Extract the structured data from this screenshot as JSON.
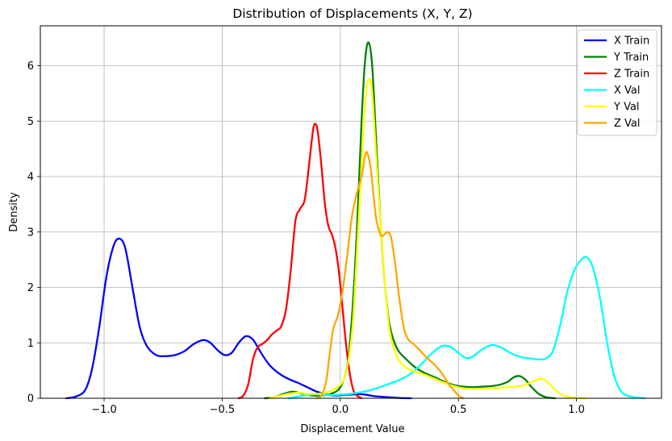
{
  "chart_data": {
    "type": "line",
    "title": "Distribution of Displacements (X, Y, Z)",
    "xlabel": "Displacement Value",
    "ylabel": "Density",
    "xlim": [
      -1.27,
      1.36
    ],
    "ylim": [
      0,
      6.72
    ],
    "xticks": [
      -1.0,
      -0.5,
      0.0,
      0.5,
      1.0
    ],
    "xtick_labels": [
      "−1.0",
      "−0.5",
      "0.0",
      "0.5",
      "1.0"
    ],
    "yticks": [
      0,
      1,
      2,
      3,
      4,
      5,
      6
    ],
    "ytick_labels": [
      "0",
      "1",
      "2",
      "3",
      "4",
      "5",
      "6"
    ],
    "grid": true,
    "legend_position": "top-right",
    "series": [
      {
        "name": "X Train",
        "color": "#0000ff",
        "points": [
          [
            -1.16,
            0
          ],
          [
            -1.12,
            0.03
          ],
          [
            -1.08,
            0.15
          ],
          [
            -1.05,
            0.55
          ],
          [
            -1.02,
            1.3
          ],
          [
            -0.99,
            2.2
          ],
          [
            -0.96,
            2.75
          ],
          [
            -0.935,
            2.88
          ],
          [
            -0.91,
            2.7
          ],
          [
            -0.88,
            2.0
          ],
          [
            -0.85,
            1.3
          ],
          [
            -0.82,
            0.95
          ],
          [
            -0.78,
            0.78
          ],
          [
            -0.74,
            0.76
          ],
          [
            -0.7,
            0.78
          ],
          [
            -0.66,
            0.85
          ],
          [
            -0.62,
            0.98
          ],
          [
            -0.58,
            1.05
          ],
          [
            -0.55,
            1.0
          ],
          [
            -0.52,
            0.87
          ],
          [
            -0.49,
            0.78
          ],
          [
            -0.46,
            0.82
          ],
          [
            -0.43,
            1.0
          ],
          [
            -0.4,
            1.12
          ],
          [
            -0.37,
            1.06
          ],
          [
            -0.34,
            0.85
          ],
          [
            -0.3,
            0.6
          ],
          [
            -0.26,
            0.45
          ],
          [
            -0.22,
            0.35
          ],
          [
            -0.18,
            0.28
          ],
          [
            -0.14,
            0.2
          ],
          [
            -0.1,
            0.12
          ],
          [
            -0.06,
            0.07
          ],
          [
            -0.02,
            0.05
          ],
          [
            0.02,
            0.06
          ],
          [
            0.06,
            0.07
          ],
          [
            0.1,
            0.07
          ],
          [
            0.14,
            0.04
          ],
          [
            0.2,
            0.02
          ],
          [
            0.25,
            0.005
          ],
          [
            0.3,
            0
          ]
        ]
      },
      {
        "name": "Y Train",
        "color": "#008000",
        "points": [
          [
            -0.32,
            0
          ],
          [
            -0.28,
            0.02
          ],
          [
            -0.24,
            0.08
          ],
          [
            -0.2,
            0.12
          ],
          [
            -0.16,
            0.08
          ],
          [
            -0.12,
            0.05
          ],
          [
            -0.08,
            0.05
          ],
          [
            -0.04,
            0.08
          ],
          [
            0.0,
            0.2
          ],
          [
            0.03,
            0.6
          ],
          [
            0.05,
            1.5
          ],
          [
            0.07,
            3.0
          ],
          [
            0.09,
            5.0
          ],
          [
            0.105,
            6.1
          ],
          [
            0.12,
            6.42
          ],
          [
            0.135,
            6.0
          ],
          [
            0.15,
            4.8
          ],
          [
            0.17,
            3.2
          ],
          [
            0.19,
            2.0
          ],
          [
            0.21,
            1.3
          ],
          [
            0.24,
            0.9
          ],
          [
            0.28,
            0.7
          ],
          [
            0.32,
            0.55
          ],
          [
            0.36,
            0.45
          ],
          [
            0.4,
            0.38
          ],
          [
            0.44,
            0.3
          ],
          [
            0.48,
            0.24
          ],
          [
            0.52,
            0.21
          ],
          [
            0.56,
            0.2
          ],
          [
            0.6,
            0.21
          ],
          [
            0.64,
            0.22
          ],
          [
            0.68,
            0.25
          ],
          [
            0.71,
            0.3
          ],
          [
            0.735,
            0.38
          ],
          [
            0.76,
            0.4
          ],
          [
            0.785,
            0.33
          ],
          [
            0.81,
            0.2
          ],
          [
            0.84,
            0.08
          ],
          [
            0.87,
            0.02
          ],
          [
            0.91,
            0
          ]
        ]
      },
      {
        "name": "Z Train",
        "color": "#ff0000",
        "points": [
          [
            -0.43,
            0
          ],
          [
            -0.41,
            0.05
          ],
          [
            -0.39,
            0.25
          ],
          [
            -0.37,
            0.7
          ],
          [
            -0.35,
            0.92
          ],
          [
            -0.33,
            0.98
          ],
          [
            -0.31,
            1.05
          ],
          [
            -0.29,
            1.15
          ],
          [
            -0.27,
            1.22
          ],
          [
            -0.25,
            1.3
          ],
          [
            -0.23,
            1.6
          ],
          [
            -0.21,
            2.3
          ],
          [
            -0.19,
            3.2
          ],
          [
            -0.17,
            3.42
          ],
          [
            -0.15,
            3.6
          ],
          [
            -0.13,
            4.3
          ],
          [
            -0.115,
            4.85
          ],
          [
            -0.105,
            4.95
          ],
          [
            -0.095,
            4.8
          ],
          [
            -0.08,
            4.2
          ],
          [
            -0.065,
            3.5
          ],
          [
            -0.05,
            3.1
          ],
          [
            -0.035,
            2.95
          ],
          [
            -0.02,
            2.7
          ],
          [
            -0.005,
            2.25
          ],
          [
            0.01,
            1.6
          ],
          [
            0.025,
            0.95
          ],
          [
            0.04,
            0.45
          ],
          [
            0.055,
            0.15
          ],
          [
            0.07,
            0.05
          ],
          [
            0.09,
            0
          ]
        ]
      },
      {
        "name": "X Val",
        "color": "#00ffff",
        "points": [
          [
            -0.22,
            0
          ],
          [
            -0.18,
            0.03
          ],
          [
            -0.14,
            0.06
          ],
          [
            -0.1,
            0.07
          ],
          [
            -0.06,
            0.06
          ],
          [
            -0.02,
            0.06
          ],
          [
            0.02,
            0.07
          ],
          [
            0.06,
            0.09
          ],
          [
            0.1,
            0.12
          ],
          [
            0.14,
            0.16
          ],
          [
            0.18,
            0.22
          ],
          [
            0.22,
            0.28
          ],
          [
            0.26,
            0.35
          ],
          [
            0.3,
            0.45
          ],
          [
            0.34,
            0.6
          ],
          [
            0.38,
            0.78
          ],
          [
            0.42,
            0.92
          ],
          [
            0.445,
            0.95
          ],
          [
            0.47,
            0.92
          ],
          [
            0.5,
            0.82
          ],
          [
            0.53,
            0.73
          ],
          [
            0.56,
            0.75
          ],
          [
            0.6,
            0.88
          ],
          [
            0.64,
            0.96
          ],
          [
            0.68,
            0.92
          ],
          [
            0.72,
            0.82
          ],
          [
            0.76,
            0.75
          ],
          [
            0.8,
            0.72
          ],
          [
            0.84,
            0.7
          ],
          [
            0.87,
            0.72
          ],
          [
            0.9,
            0.85
          ],
          [
            0.93,
            1.3
          ],
          [
            0.96,
            1.9
          ],
          [
            0.99,
            2.3
          ],
          [
            1.02,
            2.5
          ],
          [
            1.045,
            2.54
          ],
          [
            1.07,
            2.35
          ],
          [
            1.1,
            1.8
          ],
          [
            1.13,
            1.0
          ],
          [
            1.16,
            0.4
          ],
          [
            1.19,
            0.12
          ],
          [
            1.23,
            0.03
          ],
          [
            1.29,
            0
          ]
        ]
      },
      {
        "name": "Y Val",
        "color": "#ffff00",
        "points": [
          [
            -0.3,
            0
          ],
          [
            -0.26,
            0.04
          ],
          [
            -0.22,
            0.08
          ],
          [
            -0.18,
            0.1
          ],
          [
            -0.14,
            0.08
          ],
          [
            -0.1,
            0.08
          ],
          [
            -0.06,
            0.1
          ],
          [
            -0.02,
            0.18
          ],
          [
            0.02,
            0.4
          ],
          [
            0.05,
            1.2
          ],
          [
            0.07,
            2.6
          ],
          [
            0.09,
            4.2
          ],
          [
            0.105,
            5.3
          ],
          [
            0.12,
            5.75
          ],
          [
            0.135,
            5.5
          ],
          [
            0.15,
            4.5
          ],
          [
            0.17,
            3.2
          ],
          [
            0.19,
            2.0
          ],
          [
            0.21,
            1.2
          ],
          [
            0.24,
            0.75
          ],
          [
            0.28,
            0.55
          ],
          [
            0.32,
            0.48
          ],
          [
            0.36,
            0.42
          ],
          [
            0.4,
            0.35
          ],
          [
            0.44,
            0.28
          ],
          [
            0.48,
            0.22
          ],
          [
            0.52,
            0.18
          ],
          [
            0.56,
            0.17
          ],
          [
            0.6,
            0.17
          ],
          [
            0.64,
            0.18
          ],
          [
            0.68,
            0.19
          ],
          [
            0.72,
            0.2
          ],
          [
            0.76,
            0.22
          ],
          [
            0.8,
            0.27
          ],
          [
            0.83,
            0.33
          ],
          [
            0.855,
            0.35
          ],
          [
            0.88,
            0.28
          ],
          [
            0.91,
            0.15
          ],
          [
            0.95,
            0.04
          ],
          [
            1.0,
            0.005
          ],
          [
            1.04,
            0
          ]
        ]
      },
      {
        "name": "Z Val",
        "color": "#ffa500",
        "points": [
          [
            -0.1,
            0
          ],
          [
            -0.08,
            0.05
          ],
          [
            -0.06,
            0.3
          ],
          [
            -0.045,
            0.8
          ],
          [
            -0.03,
            1.25
          ],
          [
            -0.01,
            1.5
          ],
          [
            0.01,
            1.95
          ],
          [
            0.03,
            2.6
          ],
          [
            0.05,
            3.3
          ],
          [
            0.07,
            3.7
          ],
          [
            0.09,
            4.0
          ],
          [
            0.105,
            4.38
          ],
          [
            0.115,
            4.42
          ],
          [
            0.13,
            4.1
          ],
          [
            0.15,
            3.3
          ],
          [
            0.17,
            2.95
          ],
          [
            0.185,
            2.95
          ],
          [
            0.2,
            3.0
          ],
          [
            0.215,
            2.9
          ],
          [
            0.23,
            2.5
          ],
          [
            0.25,
            1.8
          ],
          [
            0.27,
            1.25
          ],
          [
            0.29,
            1.05
          ],
          [
            0.31,
            0.98
          ],
          [
            0.34,
            0.85
          ],
          [
            0.37,
            0.72
          ],
          [
            0.4,
            0.6
          ],
          [
            0.43,
            0.45
          ],
          [
            0.46,
            0.25
          ],
          [
            0.48,
            0.15
          ],
          [
            0.5,
            0.05
          ],
          [
            0.52,
            0
          ]
        ]
      }
    ]
  }
}
